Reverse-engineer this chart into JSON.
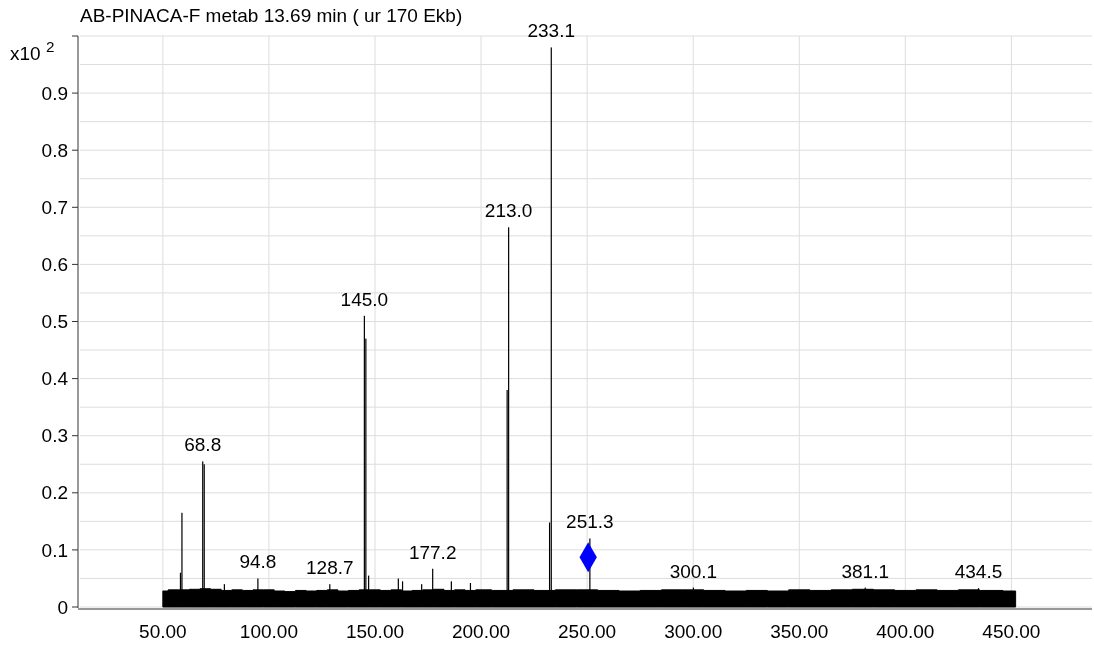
{
  "chart_data": {
    "type": "bar",
    "title": "AB-PINACA-F metab 13.69 min  ( ur 170 Ekb)",
    "ylabel": "x10 $^{2}$",
    "xlim": [
      10,
      488
    ],
    "ylim": [
      0,
      1.0
    ],
    "xticks": [
      {
        "value": 50,
        "label": "50.00"
      },
      {
        "value": 100,
        "label": "100.00"
      },
      {
        "value": 150,
        "label": "150.00"
      },
      {
        "value": 200,
        "label": "200.00"
      },
      {
        "value": 250,
        "label": "250.00"
      },
      {
        "value": 300,
        "label": "300.00"
      },
      {
        "value": 350,
        "label": "350.00"
      },
      {
        "value": 400,
        "label": "400.00"
      },
      {
        "value": 450,
        "label": "450.00"
      }
    ],
    "yticks": [
      0,
      {
        "value": 0.05,
        "label": null
      },
      0.1,
      {
        "value": 0.15,
        "label": null
      },
      0.2,
      {
        "value": 0.25,
        "label": null
      },
      0.3,
      {
        "value": 0.35,
        "label": null
      },
      0.4,
      {
        "value": 0.45,
        "label": null
      },
      0.5,
      {
        "value": 0.55,
        "label": null
      },
      0.6,
      {
        "value": 0.65,
        "label": null
      },
      0.7,
      {
        "value": 0.75,
        "label": null
      },
      0.8,
      {
        "value": 0.85,
        "label": null
      },
      0.9,
      {
        "value": 0.95,
        "label": null
      },
      {
        "value": 1.0,
        "label": null
      }
    ],
    "grid": true,
    "series": [
      {
        "type": "area",
        "color": "#000000",
        "x": [
          50,
          55,
          60,
          65,
          70,
          75,
          80,
          85,
          90,
          95,
          100,
          105,
          110,
          115,
          120,
          125,
          130,
          135,
          140,
          145,
          150,
          155,
          160,
          165,
          170,
          175,
          180,
          185,
          190,
          195,
          200,
          210,
          220,
          230,
          240,
          250,
          260,
          270,
          280,
          290,
          300,
          310,
          320,
          330,
          340,
          350,
          360,
          370,
          380,
          390,
          400,
          410,
          420,
          430,
          440,
          452
        ],
        "values": [
          0.028,
          0.03,
          0.03,
          0.031,
          0.032,
          0.031,
          0.029,
          0.03,
          0.029,
          0.03,
          0.03,
          0.028,
          0.027,
          0.029,
          0.028,
          0.029,
          0.03,
          0.028,
          0.029,
          0.03,
          0.03,
          0.029,
          0.03,
          0.028,
          0.029,
          0.03,
          0.031,
          0.029,
          0.03,
          0.029,
          0.03,
          0.029,
          0.03,
          0.029,
          0.03,
          0.03,
          0.029,
          0.028,
          0.029,
          0.03,
          0.03,
          0.029,
          0.028,
          0.029,
          0.028,
          0.03,
          0.029,
          0.03,
          0.031,
          0.03,
          0.029,
          0.03,
          0.029,
          0.03,
          0.029,
          0.028
        ]
      },
      {
        "type": "bar",
        "color": "#000000",
        "x": [
          58.3,
          59.0,
          68.8,
          69.5,
          79,
          94.8,
          128.7,
          145.0,
          145.7,
          147,
          161,
          163,
          172,
          177.2,
          186,
          195,
          212.3,
          213.0,
          232.3,
          233.1,
          251.3,
          300.1,
          381.1,
          434.5
        ],
        "values": [
          0.06,
          0.165,
          0.255,
          0.25,
          0.04,
          0.05,
          0.04,
          0.51,
          0.47,
          0.055,
          0.05,
          0.045,
          0.04,
          0.067,
          0.045,
          0.042,
          0.38,
          0.665,
          0.148,
          0.98,
          0.12,
          0.034,
          0.034,
          0.033
        ]
      },
      {
        "type": "scatter",
        "color": "#0000ff",
        "marker": "diamond",
        "x": [
          250.5
        ],
        "values": [
          0.087
        ]
      }
    ],
    "annotations": [
      {
        "text": "68.8",
        "x": 68.8,
        "y": 0.255
      },
      {
        "text": "94.8",
        "x": 94.8,
        "y": 0.05
      },
      {
        "text": "128.7",
        "x": 128.7,
        "y": 0.04
      },
      {
        "text": "145.0",
        "x": 145.0,
        "y": 0.51
      },
      {
        "text": "177.2",
        "x": 177.2,
        "y": 0.067
      },
      {
        "text": "213.0",
        "x": 213.0,
        "y": 0.665
      },
      {
        "text": "233.1",
        "x": 233.1,
        "y": 0.98
      },
      {
        "text": "251.3",
        "x": 251.3,
        "y": 0.12
      },
      {
        "text": "300.1",
        "x": 300.1,
        "y": 0.034
      },
      {
        "text": "381.1",
        "x": 381.1,
        "y": 0.034
      },
      {
        "text": "434.5",
        "x": 434.5,
        "y": 0.033
      }
    ]
  }
}
